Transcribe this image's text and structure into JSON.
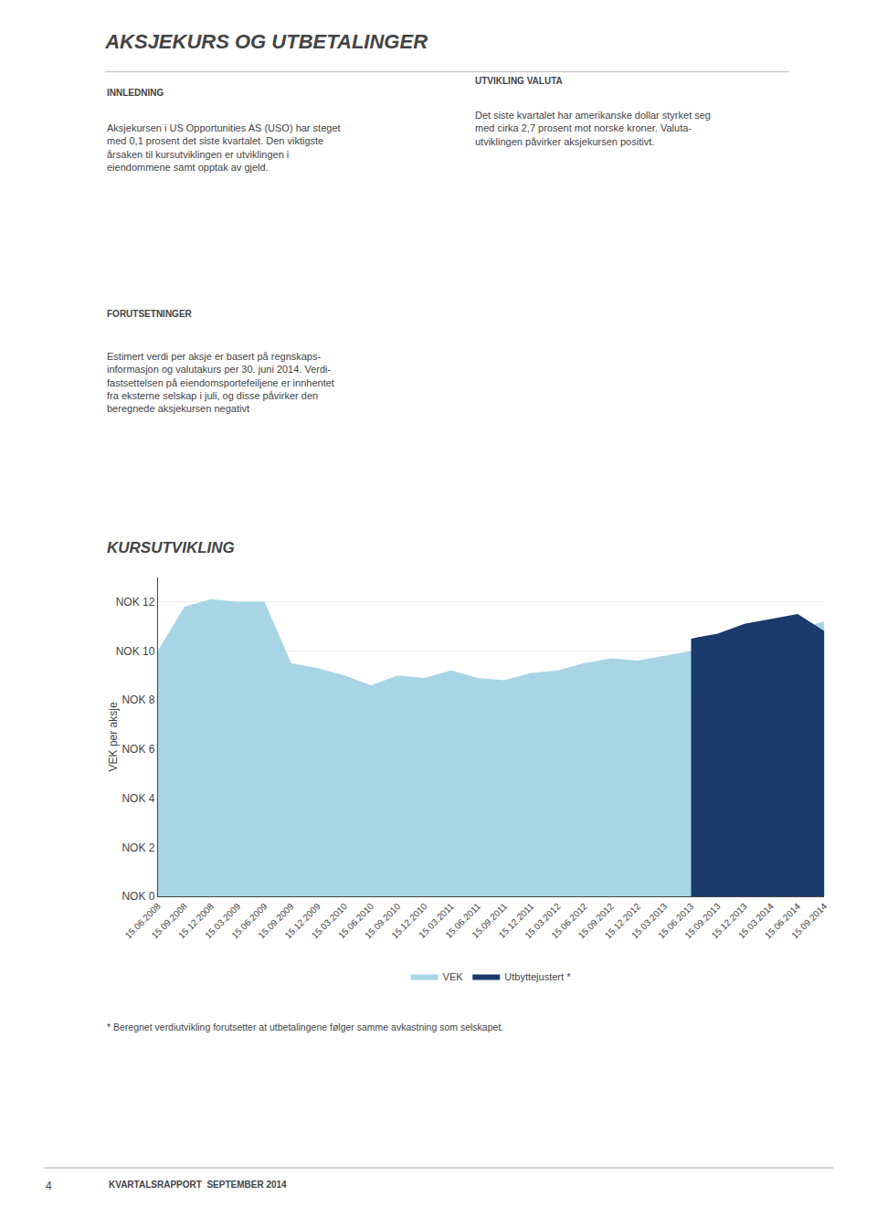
{
  "chart_data": {
    "type": "area",
    "title": "AKSJEKURS OG UTBETALINGER",
    "subtitle": "KURSUTVIKLING",
    "ylabel": "VEK per aksje",
    "categories": [
      "15.06.2008",
      "15.09.2008",
      "15.12.2008",
      "15.03.2009",
      "15.06.2009",
      "15.09.2009",
      "15.12.2009",
      "15.03.2010",
      "15.06.2010",
      "15.09.2010",
      "15.12.2010",
      "15.03.2011",
      "15.06.2011",
      "15.09.2011",
      "15.12.2011",
      "15.03.2012",
      "15.06.2012",
      "15.09.2012",
      "15.12.2012",
      "15.03.2013",
      "15.06.2013",
      "15.09.2013",
      "15.12.2013",
      "15.03.2014",
      "15.06.2014",
      "15.09.2014"
    ],
    "series": [
      {
        "name": "VEK",
        "color": "#a8d5e5",
        "values": [
          10.0,
          11.8,
          12.1,
          12.0,
          12.0,
          9.5,
          9.3,
          9.0,
          8.6,
          9.0,
          8.9,
          9.2,
          8.9,
          8.8,
          9.1,
          9.2,
          9.5,
          9.7,
          9.6,
          9.8,
          10.0,
          10.2,
          10.5,
          10.8,
          10.9,
          11.2
        ]
      },
      {
        "name": "Utbyttejustert *",
        "color": "#1a3a6b",
        "values": [
          null,
          null,
          null,
          null,
          null,
          null,
          null,
          null,
          null,
          null,
          null,
          null,
          null,
          null,
          null,
          null,
          null,
          null,
          null,
          null,
          10.5,
          10.7,
          11.1,
          11.3,
          11.5,
          10.8
        ]
      }
    ],
    "ylim": [
      0,
      13
    ],
    "yticks": [
      {
        "value": 0,
        "label": "NOK 0"
      },
      {
        "value": 2,
        "label": "NOK 2"
      },
      {
        "value": 4,
        "label": "NOK 4"
      },
      {
        "value": 6,
        "label": "NOK 6"
      },
      {
        "value": 8,
        "label": "NOK 8"
      },
      {
        "value": 10,
        "label": "NOK 10"
      },
      {
        "value": 12,
        "label": "NOK 12"
      }
    ],
    "grid": true,
    "legend": "bottom",
    "annotations": [
      "INNLEDNING",
      "Aksjekursen i US Opportunities AS (USO) har steget\nmed 0,1 prosent det siste kvartalet. Den viktigste\nårsaken til kursutviklingen er utviklingen i\neiendommene samt opptak av gjeld.",
      "UTVIKLING VALUTA",
      "Det siste kvartalet har amerikanske dollar styrket seg\nmed cirka 2,7 prosent mot norske kroner. Valuta-\nutviklingen påvirker aksjekursen positivt.",
      "FORUTSETNINGER",
      "Estimert verdi per aksje er basert på regnskaps-\ninformasjon og valutakurs per 30. juni 2014. Verdi-\nfastsettelsen på eiendomsportefeiljene er innhentet\nfra eksterne selskap i juli, og disse påvirker den\nberegnede aksjekursen negativt",
      "* Beregnet verdiutvikling forutsetter at utbetalingene følger samme avkastning som selskapet.",
      "4",
      "KVARTALSRAPPORT  SEPTEMBER 2014"
    ]
  }
}
